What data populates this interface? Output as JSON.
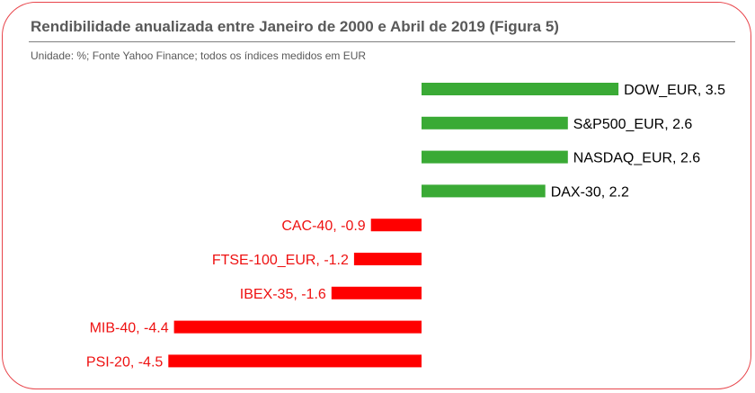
{
  "header": {
    "title": "Rendibilidade anualizada entre Janeiro de 2000 e Abril de 2019 (Figura 5)",
    "subtitle": "Unidade: %; Fonte Yahoo Finance; todos os índices medidos em EUR"
  },
  "colors": {
    "positive": "#3aaa35",
    "negative": "#ff0000",
    "positive_label": "#000000",
    "negative_label": "#ee1111",
    "frame": "#e8454b",
    "title": "#595959"
  },
  "chart_data": {
    "type": "bar",
    "orientation": "horizontal",
    "title": "Rendibilidade anualizada entre Janeiro de 2000 e Abril de 2019 (Figura 5)",
    "subtitle": "Unidade: %; Fonte Yahoo Finance; todos os índices medidos em EUR",
    "categories": [
      "DOW_EUR",
      "S&P500_EUR",
      "NASDAQ_EUR",
      "DAX-30",
      "CAC-40",
      "FTSE-100_EUR",
      "IBEX-35",
      "MIB-40",
      "PSI-20"
    ],
    "values": [
      3.5,
      2.6,
      2.6,
      2.2,
      -0.9,
      -1.2,
      -1.6,
      -4.4,
      -4.5
    ],
    "labels": [
      "DOW_EUR, 3.5",
      "S&P500_EUR, 2.6",
      "NASDAQ_EUR, 2.6",
      "DAX-30, 2.2",
      "CAC-40, -0.9",
      "FTSE-100_EUR, -1.2",
      "IBEX-35, -1.6",
      "MIB-40, -4.4",
      "PSI-20, -4.5"
    ],
    "xlim": [
      -4.5,
      3.5
    ],
    "xlabel": "",
    "ylabel": "",
    "grid": false,
    "legend": "none"
  }
}
